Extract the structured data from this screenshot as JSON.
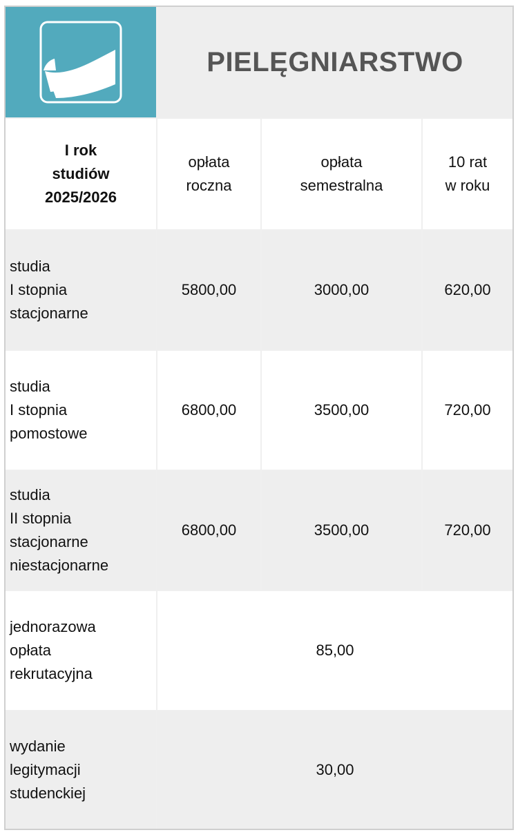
{
  "header": {
    "logo_icon": "ribbon-logo-icon",
    "logo_color": "#52aabd",
    "title": "PIELĘGNIARSTWO"
  },
  "columns": {
    "year": "I rok\nstudiów\n2025/2026",
    "annual": "opłata\nroczna",
    "semester": "opłata\nsemestralna",
    "installments": "10 rat\nw roku"
  },
  "rows": [
    {
      "label": "studia\nI stopnia\nstacjonarne",
      "annual": "5800,00",
      "semester": "3000,00",
      "installments": "620,00"
    },
    {
      "label": "studia\nI stopnia\npomostowe",
      "annual": "6800,00",
      "semester": "3500,00",
      "installments": "720,00"
    },
    {
      "label": "studia\nII stopnia\nstacjonarne\nniestacjonarne",
      "annual": "6800,00",
      "semester": "3500,00",
      "installments": "720,00"
    }
  ],
  "extra_fees": [
    {
      "label": "jednorazowa\nopłata\nrekrutacyjna",
      "value": "85,00"
    },
    {
      "label": "wydanie\nlegitymacji\nstudenckiej",
      "value": "30,00"
    }
  ]
}
